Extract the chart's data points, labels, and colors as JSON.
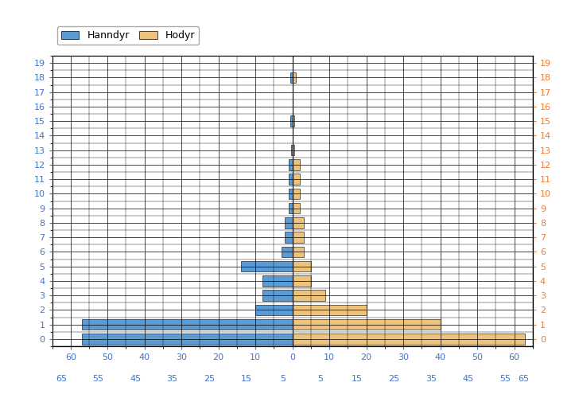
{
  "ages": [
    0,
    1,
    2,
    3,
    4,
    5,
    6,
    7,
    8,
    9,
    10,
    11,
    12,
    13,
    14,
    15,
    16,
    17,
    18,
    19
  ],
  "hanndyr": [
    57,
    57,
    10,
    8,
    8,
    14,
    3,
    2,
    2,
    1,
    1,
    1,
    1,
    0.3,
    0,
    0.5,
    0,
    0,
    0.5,
    0
  ],
  "hodyr": [
    63,
    40,
    20,
    9,
    5,
    5,
    3,
    3,
    3,
    2,
    2,
    2,
    2,
    0.5,
    0,
    0.5,
    0,
    0,
    1,
    0
  ],
  "hanndyr_color": "#5B9BD5",
  "hodyr_color": "#EDC27B",
  "background_color": "#FFFFFF",
  "xlim": 65,
  "legend_hanndyr": "Hanndyr",
  "legend_hodyr": "Hodyr",
  "tick_color_left": "#4472C4",
  "tick_color_right": "#ED7D31",
  "bar_height": 0.75,
  "xticks_major": [
    -60,
    -50,
    -40,
    -30,
    -20,
    -10,
    0,
    10,
    20,
    30,
    40,
    50,
    60
  ],
  "xticks_minor_vals": [
    -62.5,
    -52.5,
    -42.5,
    -32.5,
    -22.5,
    -12.5,
    -2.5,
    7.5,
    17.5,
    27.5,
    37.5,
    47.5,
    57.5,
    62.5
  ],
  "xticks_minor_labels": [
    "65",
    "55",
    "45",
    "35",
    "25",
    "15",
    "5",
    "5",
    "15",
    "25",
    "35",
    "45",
    "55",
    "65"
  ]
}
